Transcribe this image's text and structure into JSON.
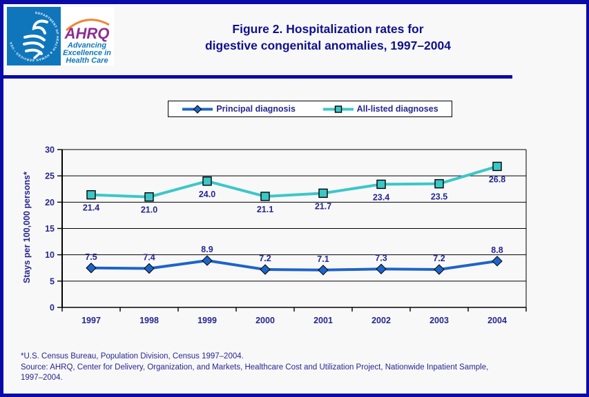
{
  "colors": {
    "page-bg": "#f8f8f9",
    "border-blue": "#0a0aa8",
    "navy": "#26268f",
    "title-navy": "#10108c",
    "grid-black": "#000000",
    "principal-blue": "#1e64c8",
    "all-listed-teal": "#3cc7c7",
    "hhs-blue": "#0f76bc",
    "ahrq-purple": "#8e2c90",
    "arc-orange": "#ef8435"
  },
  "logo": {
    "ahrq_text": "AHRQ",
    "tagline_line1": "Advancing",
    "tagline_line2": "Excellence in",
    "tagline_line3": "Health Care",
    "seal_text": "DEPARTMENT OF HEALTH & HUMAN SERVICES • USA"
  },
  "title": {
    "line1": "Figure 2. Hospitalization rates for",
    "line2": "digestive congenital anomalies, 1997–2004"
  },
  "legend": {
    "items": [
      {
        "label": "Principal diagnosis",
        "marker": "diamond",
        "color": "#1e64c8"
      },
      {
        "label": "All-listed diagnoses",
        "marker": "square",
        "color": "#3cc7c7"
      }
    ]
  },
  "chart_data": {
    "type": "line",
    "title": "Figure 2. Hospitalization rates for digestive congenital anomalies, 1997–2004",
    "categories": [
      "1997",
      "1998",
      "1999",
      "2000",
      "2001",
      "2002",
      "2003",
      "2004"
    ],
    "series": [
      {
        "name": "Principal diagnosis",
        "marker": "diamond",
        "color": "#1e64c8",
        "values": [
          7.5,
          7.4,
          8.9,
          7.2,
          7.1,
          7.3,
          7.2,
          8.8
        ],
        "labels": [
          "7.5",
          "7.4",
          "8.9",
          "7.2",
          "7.1",
          "7.3",
          "7.2",
          "8.8"
        ],
        "label_position": "above"
      },
      {
        "name": "All-listed diagnoses",
        "marker": "square",
        "color": "#3cc7c7",
        "values": [
          21.4,
          21.0,
          24.0,
          21.1,
          21.7,
          23.4,
          23.5,
          26.8
        ],
        "labels": [
          "21.4",
          "21.0",
          "24.0",
          "21.1",
          "21.7",
          "23.4",
          "23.5",
          "26.8"
        ],
        "label_position": "below"
      }
    ],
    "xlabel": "",
    "ylabel": "Stays per 100,000 persons*",
    "ylim": [
      0,
      30
    ],
    "ytick_step": 5,
    "yticks": [
      0,
      5,
      10,
      15,
      20,
      25,
      30
    ],
    "grid": true,
    "legend_position": "top"
  },
  "footnotes": {
    "line1": "*U.S. Census Bureau, Population Division, Census 1997–2004.",
    "line2": "Source: AHRQ, Center for Delivery, Organization, and Markets, Healthcare Cost and Utilization Project, Nationwide Inpatient Sample,",
    "line3": "1997–2004."
  }
}
